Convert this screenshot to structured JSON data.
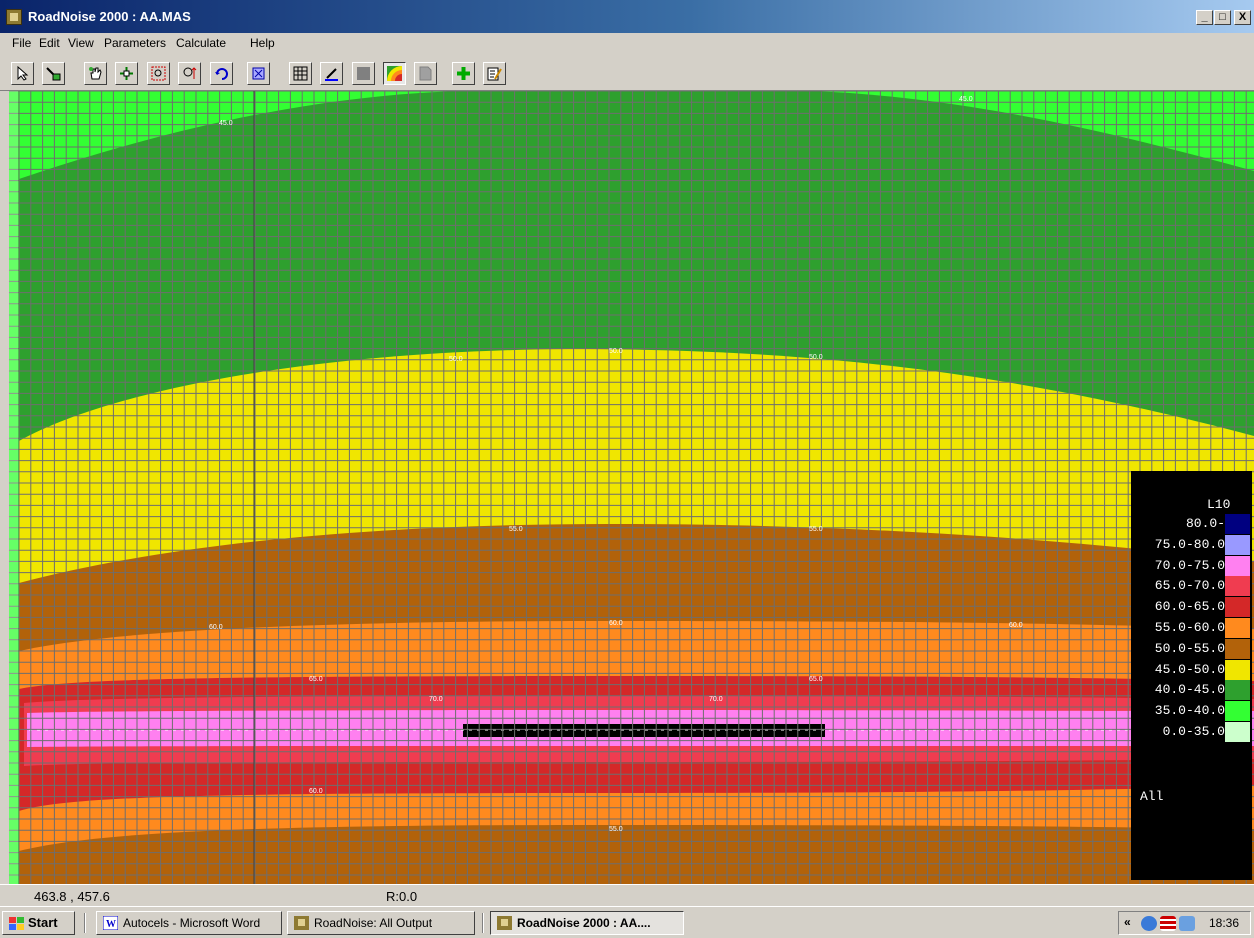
{
  "window": {
    "title": "RoadNoise 2000 : AA.MAS",
    "minimize": "_",
    "maximize": "□",
    "close": "X"
  },
  "menu": [
    "File",
    "Edit",
    "View",
    "Parameters",
    "Calculate",
    "Help"
  ],
  "toolbar": [
    {
      "name": "select-arrow-icon"
    },
    {
      "name": "select-receiver-icon"
    },
    {
      "name": "hand-pan-icon"
    },
    {
      "name": "move-icon"
    },
    {
      "name": "zoom-window-icon"
    },
    {
      "name": "zoom-in-out-icon"
    },
    {
      "name": "rotate-icon"
    },
    {
      "name": "fit-view-icon"
    },
    {
      "name": "grid-icon"
    },
    {
      "name": "draw-road-icon"
    },
    {
      "name": "fill-icon"
    },
    {
      "name": "contour-icon"
    },
    {
      "name": "page-icon"
    },
    {
      "name": "add-icon"
    },
    {
      "name": "edit-properties-icon"
    }
  ],
  "contours": {
    "colors": {
      "band_35_40": "#33ff33",
      "band_40_45": "#2ea02e",
      "band_45_50": "#f0e600",
      "band_50_55": "#b2620a",
      "band_55_60": "#ff8a1e",
      "band_60_65": "#d42828",
      "band_65_70": "#f03c50",
      "band_70_75": "#ff80f0",
      "road": "#000000"
    },
    "line_labels": [
      "45.0",
      "50.0",
      "55.0",
      "60.0",
      "65.0",
      "70.0"
    ]
  },
  "legend": {
    "title": "L10",
    "rows": [
      {
        "label": "80.0-",
        "color": "#000080"
      },
      {
        "label": "75.0-80.0",
        "color": "#9999ff"
      },
      {
        "label": "70.0-75.0",
        "color": "#ff80f0"
      },
      {
        "label": "65.0-70.0",
        "color": "#f03c50"
      },
      {
        "label": "60.0-65.0",
        "color": "#d42828"
      },
      {
        "label": "55.0-60.0",
        "color": "#ff8a1e"
      },
      {
        "label": "50.0-55.0",
        "color": "#b2620a"
      },
      {
        "label": "45.0-50.0",
        "color": "#f0e600"
      },
      {
        "label": "40.0-45.0",
        "color": "#2ea02e"
      },
      {
        "label": "35.0-40.0",
        "color": "#33ff33"
      },
      {
        "label": "0.0-35.0",
        "color": "#ccffcc"
      }
    ],
    "footer": "All"
  },
  "status": {
    "coords": "463.8 ,  457.6",
    "rotation": "R:0.0"
  },
  "taskbar": {
    "start": "Start",
    "tasks": [
      {
        "label": "Autocels - Microsoft Word",
        "icon": "word-icon",
        "active": false
      },
      {
        "label": "RoadNoise: All Output",
        "icon": "roadnoise-icon",
        "active": false
      },
      {
        "label": "RoadNoise 2000 : AA....",
        "icon": "roadnoise-icon",
        "active": true
      }
    ],
    "clock": "18:36"
  }
}
